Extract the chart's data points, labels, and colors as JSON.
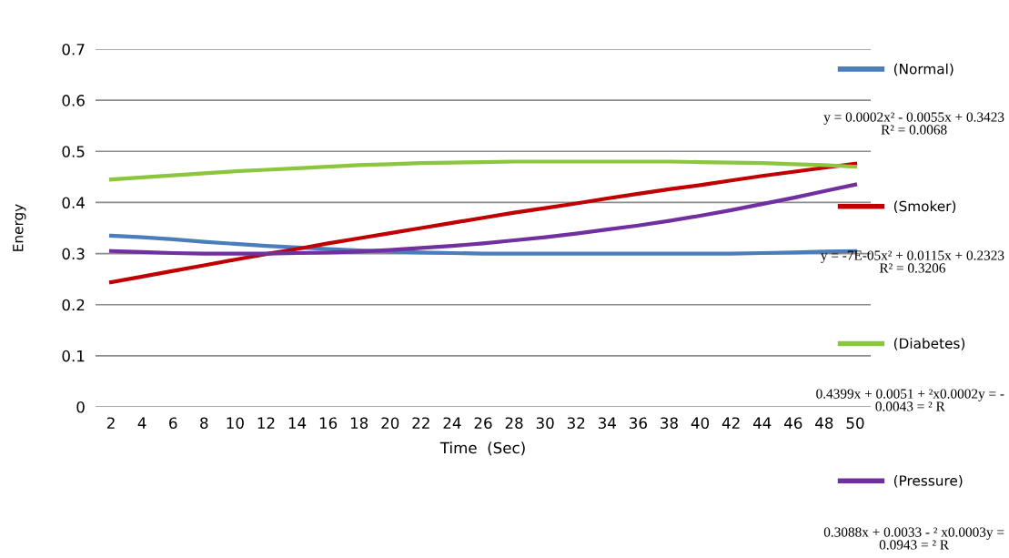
{
  "chart_data": {
    "type": "line",
    "xlabel": "Time  (Sec)",
    "ylabel": "Energy",
    "categories": [
      "2",
      "4",
      "6",
      "8",
      "10",
      "12",
      "14",
      "16",
      "18",
      "20",
      "22",
      "24",
      "26",
      "28",
      "30",
      "32",
      "34",
      "36",
      "38",
      "40",
      "42",
      "44",
      "46",
      "48",
      "50"
    ],
    "series": [
      {
        "name": "(Normal)",
        "color": "#4a7ebb",
        "values": [
          0.335,
          0.332,
          0.328,
          0.323,
          0.319,
          0.315,
          0.312,
          0.309,
          0.306,
          0.304,
          0.302,
          0.301,
          0.3,
          0.3,
          0.3,
          0.3,
          0.3,
          0.3,
          0.3,
          0.3,
          0.3,
          0.301,
          0.302,
          0.304,
          0.305
        ]
      },
      {
        "name": "(Smoker)",
        "color": "#c00000",
        "values": [
          0.244,
          0.255,
          0.266,
          0.277,
          0.288,
          0.299,
          0.309,
          0.32,
          0.33,
          0.34,
          0.35,
          0.36,
          0.37,
          0.38,
          0.389,
          0.398,
          0.408,
          0.417,
          0.426,
          0.434,
          0.443,
          0.452,
          0.46,
          0.468,
          0.476
        ]
      },
      {
        "name": "(Diabetes)",
        "color": "#8cc63f",
        "values": [
          0.445,
          0.449,
          0.453,
          0.457,
          0.461,
          0.464,
          0.467,
          0.47,
          0.473,
          0.475,
          0.477,
          0.478,
          0.479,
          0.48,
          0.48,
          0.48,
          0.48,
          0.48,
          0.48,
          0.479,
          0.478,
          0.477,
          0.475,
          0.473,
          0.47
        ]
      },
      {
        "name": "(Pressure)",
        "color": "#7030a0",
        "values": [
          0.305,
          0.303,
          0.301,
          0.3,
          0.3,
          0.3,
          0.301,
          0.302,
          0.304,
          0.307,
          0.311,
          0.315,
          0.32,
          0.326,
          0.332,
          0.339,
          0.347,
          0.355,
          0.364,
          0.374,
          0.385,
          0.397,
          0.409,
          0.422,
          0.435
        ]
      }
    ],
    "annotations": [
      "y = 0.0002x² - 0.0055x + 0.3423\nR² = 0.0068",
      "y = -7E-05x² + 0.0115x + 0.2323\nR² = 0.3206",
      "0.4399x + 0.0051 + ²x0.0002y = -\n0.0043 = ² R",
      "0.3088x + 0.0033 - ² x0.0003y =\n0.0943 = ² R"
    ],
    "ylim": [
      0,
      0.7
    ],
    "yticks": [
      0,
      0.1,
      0.2,
      0.3,
      0.4,
      0.5,
      0.6,
      0.7
    ],
    "grid": "y",
    "legend": "right"
  }
}
